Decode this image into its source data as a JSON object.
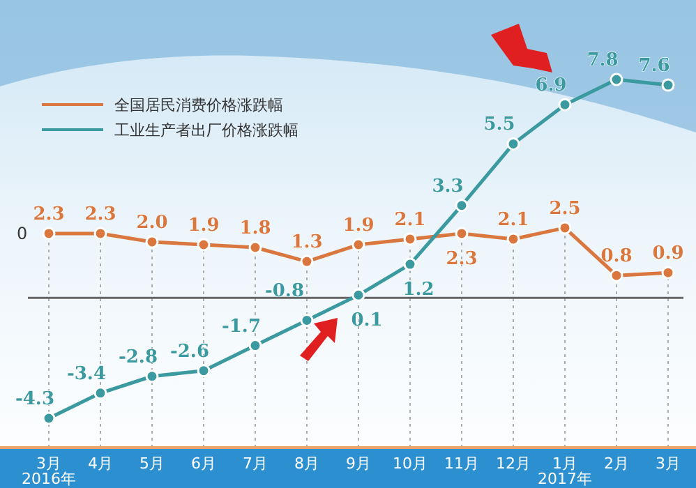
{
  "chart_data": {
    "type": "line",
    "categories": [
      "3月\n2016年",
      "4月",
      "5月",
      "6月",
      "7月",
      "8月",
      "9月",
      "10月",
      "11月",
      "12月",
      "1月\n2017年",
      "2月",
      "3月"
    ],
    "series": [
      {
        "name": "全国居民消费价格涨跌幅",
        "color": "#d9773f",
        "values": [
          2.3,
          2.3,
          2.0,
          1.9,
          1.8,
          1.3,
          1.9,
          2.1,
          2.3,
          2.1,
          2.5,
          0.8,
          0.9
        ],
        "value_labels": [
          "2.3",
          "2.3",
          "2.0",
          "1.9",
          "1.8",
          "1.3",
          "1.9",
          "2.1",
          "2.3",
          "2.1",
          "2.5",
          "0.8",
          "0.9"
        ]
      },
      {
        "name": "工业生产者出厂价格涨跌幅",
        "color": "#3a9aa0",
        "values": [
          -4.3,
          -3.4,
          -2.8,
          -2.6,
          -1.7,
          -0.8,
          0.1,
          1.2,
          3.3,
          5.5,
          6.9,
          7.8,
          7.6
        ],
        "value_labels": [
          "-4.3",
          "-3.4",
          "-2.8",
          "-2.6",
          "-1.7",
          "-0.8",
          "0.1",
          "1.2",
          "3.3",
          "5.5",
          "6.9",
          "7.8",
          "7.6"
        ]
      }
    ],
    "tick_labels": "x",
    "marker": "circle",
    "legend": "top left",
    "ref_lines": [
      {
        "axis": "y",
        "value": 0,
        "color": "#666666"
      }
    ],
    "annotations": [
      "0"
    ]
  }
}
